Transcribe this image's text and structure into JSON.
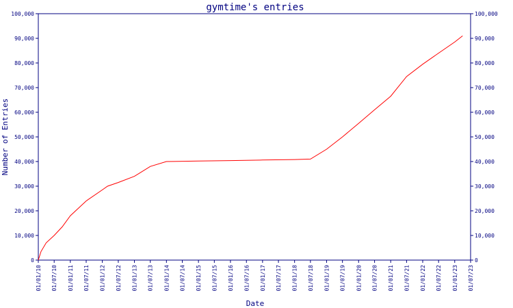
{
  "chart_data": {
    "type": "line",
    "title": "gymtime's entries",
    "xlabel": "Date",
    "ylabel": "Number of Entries",
    "x_range": [
      "2010-01-01",
      "2023-07-01"
    ],
    "ylim": [
      0,
      100000
    ],
    "y_ticks": [
      0,
      10000,
      20000,
      30000,
      40000,
      50000,
      60000,
      70000,
      80000,
      90000,
      100000
    ],
    "y_tick_labels": [
      "0",
      "10,000",
      "20,000",
      "30,000",
      "40,000",
      "50,000",
      "60,000",
      "70,000",
      "80,000",
      "90,000",
      "100,000"
    ],
    "x_ticks": [
      "2010-01-01",
      "2010-07-01",
      "2011-01-01",
      "2011-07-01",
      "2012-01-01",
      "2012-07-01",
      "2013-01-01",
      "2013-07-01",
      "2014-01-01",
      "2014-07-01",
      "2015-01-01",
      "2015-07-01",
      "2016-01-01",
      "2016-07-01",
      "2017-01-01",
      "2017-07-01",
      "2018-01-01",
      "2018-07-01",
      "2019-01-01",
      "2019-07-01",
      "2020-01-01",
      "2020-07-01",
      "2021-01-01",
      "2021-07-01",
      "2022-01-01",
      "2022-07-01",
      "2023-01-01",
      "2023-07-01"
    ],
    "x_tick_labels": [
      "01/01/10",
      "01/07/10",
      "01/01/11",
      "01/07/11",
      "01/01/12",
      "01/07/12",
      "01/01/13",
      "01/07/13",
      "01/01/14",
      "01/07/14",
      "01/01/15",
      "01/07/15",
      "01/01/16",
      "01/07/16",
      "01/01/17",
      "01/07/17",
      "01/01/18",
      "01/07/18",
      "01/01/19",
      "01/07/19",
      "01/01/20",
      "01/07/20",
      "01/01/21",
      "01/07/21",
      "01/01/22",
      "01/07/22",
      "01/01/23",
      "01/07/23"
    ],
    "grid": false,
    "legend": "none",
    "colors": {
      "line": "#ff0000",
      "axis": "#000080",
      "text": "#000080"
    },
    "series": [
      {
        "x": [
          "2010-01-01",
          "2010-02-01",
          "2010-04-01",
          "2010-07-01",
          "2010-10-01",
          "2011-01-01",
          "2011-07-01",
          "2012-01-01",
          "2012-03-01",
          "2012-07-01",
          "2013-01-01",
          "2013-07-01",
          "2014-01-01",
          "2015-01-01",
          "2016-01-01",
          "2017-01-01",
          "2018-01-01",
          "2018-07-01",
          "2019-01-01",
          "2019-07-01",
          "2020-01-01",
          "2020-07-01",
          "2021-01-01",
          "2021-07-01",
          "2022-01-01",
          "2022-07-01",
          "2023-01-01",
          "2023-04-01"
        ],
        "y": [
          0,
          3500,
          7000,
          10000,
          13500,
          18000,
          24000,
          28500,
          30000,
          31500,
          34000,
          38000,
          40000,
          40200,
          40400,
          40600,
          40800,
          41000,
          45000,
          50000,
          55500,
          61000,
          66500,
          74500,
          79500,
          84000,
          88500,
          91000
        ]
      }
    ]
  }
}
